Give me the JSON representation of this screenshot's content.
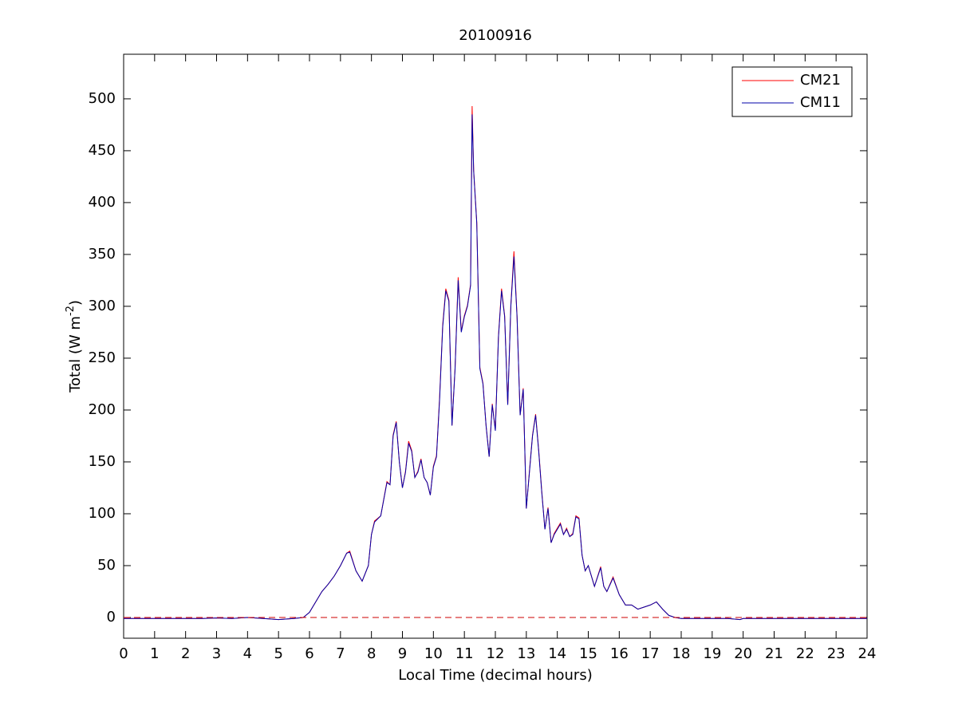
{
  "chart_data": {
    "type": "line",
    "title": "20100916",
    "xlabel": "Local Time (decimal hours)",
    "ylabel": {
      "text": "Total (W m",
      "superscript": "-2",
      "suffix": ")"
    },
    "x": [
      0,
      0.5,
      1,
      1.5,
      2,
      2.5,
      3,
      3.5,
      4,
      4.5,
      5,
      5.5,
      5.8,
      6.0,
      6.2,
      6.4,
      6.6,
      6.8,
      7.0,
      7.2,
      7.3,
      7.5,
      7.7,
      7.9,
      8.0,
      8.1,
      8.3,
      8.5,
      8.6,
      8.7,
      8.8,
      8.9,
      9.0,
      9.1,
      9.2,
      9.3,
      9.4,
      9.5,
      9.6,
      9.7,
      9.8,
      9.9,
      10.0,
      10.1,
      10.2,
      10.3,
      10.4,
      10.5,
      10.6,
      10.7,
      10.8,
      10.9,
      11.0,
      11.1,
      11.2,
      11.25,
      11.3,
      11.4,
      11.5,
      11.6,
      11.7,
      11.8,
      11.9,
      12.0,
      12.1,
      12.2,
      12.3,
      12.4,
      12.5,
      12.6,
      12.7,
      12.8,
      12.9,
      13.0,
      13.1,
      13.2,
      13.3,
      13.4,
      13.5,
      13.6,
      13.7,
      13.8,
      13.9,
      14.0,
      14.1,
      14.2,
      14.3,
      14.4,
      14.5,
      14.6,
      14.7,
      14.8,
      14.9,
      15.0,
      15.2,
      15.4,
      15.5,
      15.6,
      15.8,
      16.0,
      16.2,
      16.4,
      16.6,
      16.8,
      17.0,
      17.2,
      17.4,
      17.6,
      17.8,
      18,
      18.5,
      19,
      19.5,
      19.9,
      20,
      20.5,
      21,
      22,
      23,
      24
    ],
    "series": [
      {
        "name": "CM21",
        "color": "#ff0000",
        "values": [
          -1,
          -1,
          -1,
          -1,
          -1,
          -1,
          -0.5,
          -1,
          0,
          -1,
          -2,
          -1,
          0,
          5,
          15,
          25,
          32,
          40,
          50,
          62,
          64,
          45,
          35,
          50,
          80,
          93,
          98,
          131,
          128,
          176,
          189,
          150,
          125,
          141,
          170,
          161,
          135,
          141,
          153,
          135,
          130,
          118,
          146,
          156,
          212,
          282,
          317,
          306,
          185,
          241,
          328,
          276,
          291,
          301,
          321,
          493,
          431,
          381,
          241,
          226,
          185,
          155,
          206,
          181,
          271,
          317,
          291,
          205,
          301,
          353,
          291,
          195,
          221,
          105,
          141,
          176,
          196,
          161,
          121,
          85,
          106,
          72,
          81,
          86,
          91,
          80,
          86,
          78,
          81,
          98,
          96,
          60,
          45,
          50,
          30,
          49,
          30,
          25,
          39,
          22,
          12,
          12,
          8,
          10,
          12,
          15,
          8,
          2,
          0,
          -1,
          -1,
          -1,
          -1,
          -2,
          -1,
          -1,
          -1,
          -1,
          -1,
          -1
        ]
      },
      {
        "name": "CM11",
        "color": "#0000aa",
        "values": [
          -1,
          -1,
          -1,
          -1,
          -1,
          -1,
          -0.5,
          -1,
          0,
          -1,
          -2,
          -1,
          0,
          5,
          15,
          25,
          32,
          40,
          50,
          62,
          63,
          45,
          35,
          50,
          80,
          92,
          98,
          130,
          128,
          175,
          188,
          150,
          125,
          140,
          168,
          160,
          135,
          140,
          152,
          135,
          130,
          118,
          145,
          155,
          210,
          280,
          315,
          305,
          185,
          240,
          325,
          275,
          290,
          300,
          320,
          485,
          430,
          380,
          240,
          225,
          185,
          155,
          205,
          180,
          270,
          315,
          290,
          205,
          300,
          348,
          290,
          195,
          220,
          105,
          140,
          175,
          195,
          160,
          120,
          85,
          105,
          72,
          80,
          85,
          90,
          80,
          85,
          78,
          80,
          97,
          95,
          60,
          45,
          50,
          30,
          48,
          30,
          25,
          38,
          22,
          12,
          12,
          8,
          10,
          12,
          15,
          8,
          2,
          0,
          -1,
          -1,
          -1,
          -1,
          -2,
          -1,
          -1,
          -1,
          -1,
          -1,
          -1
        ]
      }
    ],
    "reference_line": {
      "value": 0,
      "color": "#cc0000",
      "dashed": true
    },
    "xlim": [
      0,
      24
    ],
    "xticks": [
      0,
      1,
      2,
      3,
      4,
      5,
      6,
      7,
      8,
      9,
      10,
      11,
      12,
      13,
      14,
      15,
      16,
      17,
      18,
      19,
      20,
      21,
      22,
      23,
      24
    ],
    "ylim": [
      -20,
      543
    ],
    "yticks": [
      0,
      50,
      100,
      150,
      200,
      250,
      300,
      350,
      400,
      450,
      500
    ],
    "grid": false,
    "legend": "top-right"
  }
}
